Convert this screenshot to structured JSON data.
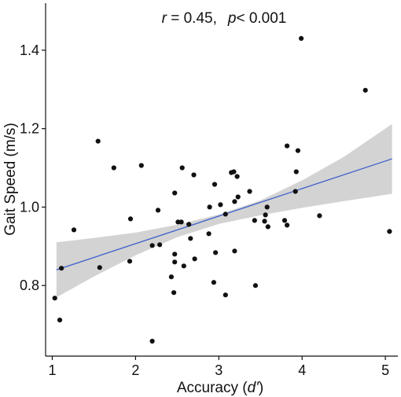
{
  "chart_data": {
    "type": "scatter",
    "xlabel_prefix": "Accuracy (",
    "xlabel_var": "d'",
    "xlabel_suffix": ")",
    "ylabel": "Gait Speed (m/s)",
    "annotation": {
      "r_label": "r",
      "r_value": " = 0.45,",
      "p_label": "p",
      "p_value": "< 0.001"
    },
    "x_ticks": [
      "1",
      "2",
      "3",
      "4",
      "5"
    ],
    "y_ticks": [
      "0.8",
      "1.0",
      "1.2",
      "1.4"
    ],
    "xlim": [
      0.92,
      5.15
    ],
    "ylim": [
      0.62,
      1.52
    ],
    "grid": false,
    "points": [
      [
        1.03,
        0.768
      ],
      [
        1.09,
        0.712
      ],
      [
        1.11,
        0.844
      ],
      [
        1.26,
        0.942
      ],
      [
        1.55,
        1.168
      ],
      [
        1.57,
        0.846
      ],
      [
        1.74,
        1.1
      ],
      [
        1.93,
        0.862
      ],
      [
        1.94,
        0.97
      ],
      [
        2.07,
        1.106
      ],
      [
        2.2,
        0.902
      ],
      [
        2.2,
        0.658
      ],
      [
        2.27,
        0.992
      ],
      [
        2.29,
        0.904
      ],
      [
        2.43,
        0.822
      ],
      [
        2.46,
        0.782
      ],
      [
        2.47,
        0.88
      ],
      [
        2.47,
        0.86
      ],
      [
        2.47,
        1.036
      ],
      [
        2.51,
        0.962
      ],
      [
        2.55,
        0.962
      ],
      [
        2.56,
        1.1
      ],
      [
        2.58,
        0.85
      ],
      [
        2.64,
        0.956
      ],
      [
        2.66,
        0.92
      ],
      [
        2.7,
        1.082
      ],
      [
        2.71,
        0.868
      ],
      [
        2.88,
        0.932
      ],
      [
        2.89,
        1.0
      ],
      [
        2.94,
        0.808
      ],
      [
        2.95,
        1.058
      ],
      [
        2.96,
        0.884
      ],
      [
        3.02,
        1.006
      ],
      [
        3.08,
        0.776
      ],
      [
        3.08,
        0.982
      ],
      [
        3.15,
        1.088
      ],
      [
        3.18,
        1.09
      ],
      [
        3.19,
        0.888
      ],
      [
        3.19,
        1.014
      ],
      [
        3.22,
        1.078
      ],
      [
        3.23,
        1.026
      ],
      [
        3.37,
        1.04
      ],
      [
        3.43,
        0.966
      ],
      [
        3.44,
        0.8
      ],
      [
        3.55,
        0.964
      ],
      [
        3.56,
        0.98
      ],
      [
        3.58,
        1.0
      ],
      [
        3.59,
        0.95
      ],
      [
        3.79,
        0.966
      ],
      [
        3.82,
        1.156
      ],
      [
        3.82,
        0.954
      ],
      [
        3.92,
        1.04
      ],
      [
        3.93,
        1.09
      ],
      [
        3.95,
        1.144
      ],
      [
        3.99,
        1.43
      ],
      [
        4.21,
        0.978
      ],
      [
        4.76,
        1.298
      ],
      [
        5.05,
        0.938
      ]
    ],
    "fit_line": {
      "x": [
        1.05,
        5.08
      ],
      "y": [
        0.84,
        1.123
      ]
    },
    "confidence_band": {
      "x": [
        1.05,
        1.5,
        2.0,
        2.5,
        3.0,
        3.5,
        4.0,
        4.5,
        5.08
      ],
      "lower": [
        0.77,
        0.823,
        0.877,
        0.923,
        0.957,
        0.979,
        0.998,
        1.015,
        1.034
      ],
      "upper": [
        0.91,
        0.921,
        0.935,
        0.955,
        0.981,
        1.017,
        1.068,
        1.128,
        1.212
      ]
    },
    "colors": {
      "fit_line": "#3a5fcd",
      "band": "#d3d3d3",
      "points": "#111111",
      "axis": "#111111"
    }
  }
}
